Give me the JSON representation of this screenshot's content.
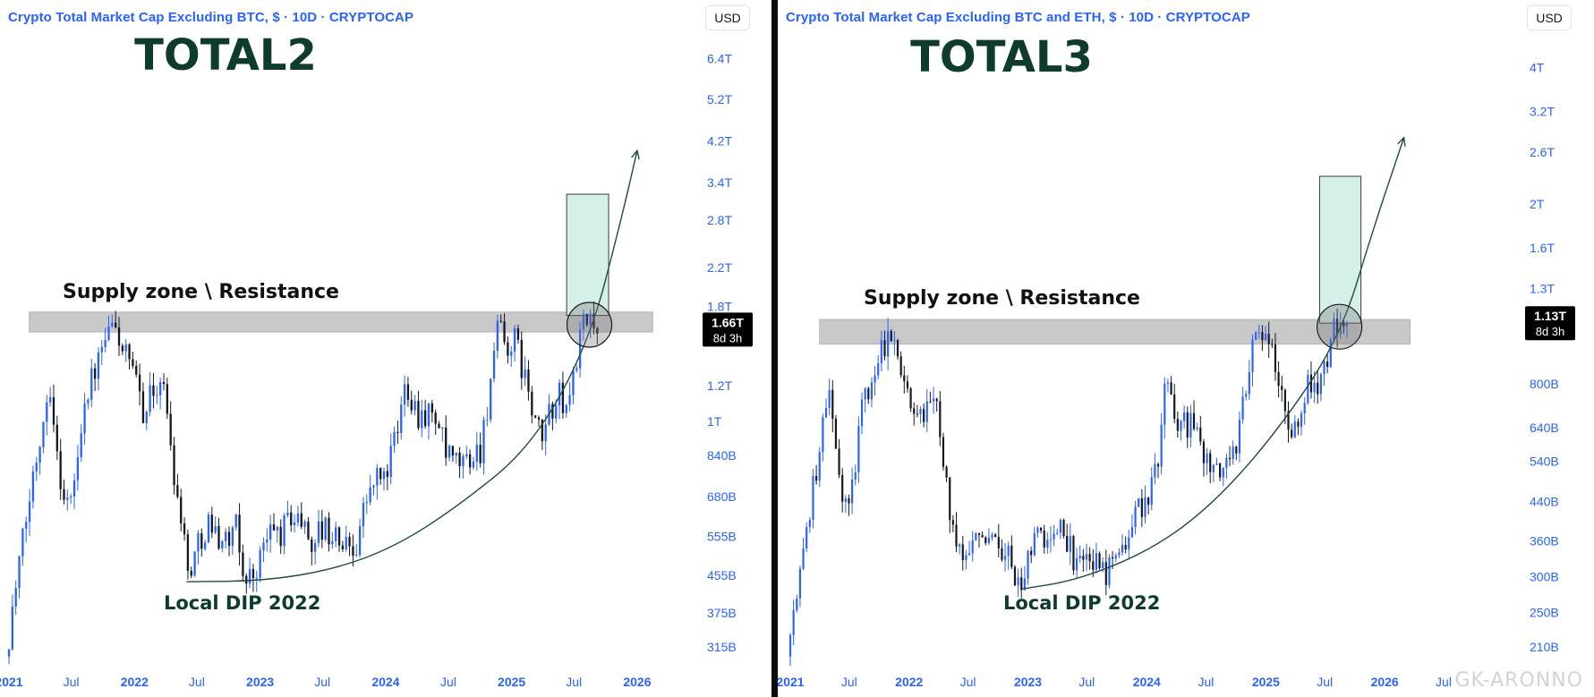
{
  "colors": {
    "accent": "#2962ff",
    "zone": "#c8c8c8",
    "target": "#d5efe9",
    "bull": "#2962ff",
    "bear": "#131722",
    "big_label": "#0d3b2e",
    "price_badge_bg": "#000000"
  },
  "watermark": "GK-ARONNO",
  "chart_data": [
    {
      "type": "candlestick",
      "title": "Crypto Total Market Cap Excluding BTC, $ · 10D · CRYPTOCAP",
      "big_label": "TOTAL2",
      "currency_button": "USD",
      "y_scale": "log",
      "ylim": [
        285,
        7200
      ],
      "y_unit": "B",
      "y_ticks": [
        {
          "label": "6.4T",
          "value": 6400
        },
        {
          "label": "5.2T",
          "value": 5200
        },
        {
          "label": "4.2T",
          "value": 4200
        },
        {
          "label": "3.4T",
          "value": 3400
        },
        {
          "label": "2.8T",
          "value": 2800
        },
        {
          "label": "2.2T",
          "value": 2200
        },
        {
          "label": "1.8T",
          "value": 1800
        },
        {
          "label": "1.2T",
          "value": 1200
        },
        {
          "label": "1T",
          "value": 1000
        },
        {
          "label": "840B",
          "value": 840
        },
        {
          "label": "680B",
          "value": 680
        },
        {
          "label": "555B",
          "value": 555
        },
        {
          "label": "455B",
          "value": 455
        },
        {
          "label": "375B",
          "value": 375
        },
        {
          "label": "315B",
          "value": 315
        }
      ],
      "x_range": [
        "2021-01-01",
        "2026-03-15"
      ],
      "x_ticks": [
        {
          "label": "2021",
          "date": "2021-01-01"
        },
        {
          "label": "Jul",
          "date": "2021-07-01"
        },
        {
          "label": "2022",
          "date": "2022-01-01"
        },
        {
          "label": "Jul",
          "date": "2022-07-01"
        },
        {
          "label": "2023",
          "date": "2023-01-01"
        },
        {
          "label": "Jul",
          "date": "2023-07-01"
        },
        {
          "label": "2024",
          "date": "2024-01-01"
        },
        {
          "label": "Jul",
          "date": "2024-07-01"
        },
        {
          "label": "2025",
          "date": "2025-01-01"
        },
        {
          "label": "Jul",
          "date": "2025-07-01"
        },
        {
          "label": "2026",
          "date": "2026-01-01"
        }
      ],
      "price_badge": {
        "value": 1660,
        "label": "1.66T",
        "countdown": "8d 3h"
      },
      "zone": {
        "label": "Supply zone \\ Resistance",
        "start": "2021-03-01",
        "end": "2026-02-15",
        "low": 1580,
        "high": 1750
      },
      "target_box": {
        "start": "2025-06-10",
        "end": "2025-10-10",
        "low": 1720,
        "high": 3200
      },
      "circle": {
        "date": "2025-08-15",
        "value": 1640
      },
      "curve": [
        {
          "date": "2022-06-01",
          "value": 440
        },
        {
          "date": "2023-01-10",
          "value": 442
        },
        {
          "date": "2023-08-01",
          "value": 468
        },
        {
          "date": "2024-02-01",
          "value": 528
        },
        {
          "date": "2024-08-01",
          "value": 650
        },
        {
          "date": "2025-03-01",
          "value": 880
        },
        {
          "date": "2025-08-15",
          "value": 1500
        },
        {
          "date": "2025-11-15",
          "value": 2800
        },
        {
          "date": "2026-01-01",
          "value": 4000
        }
      ],
      "dip_label": "Local DIP 2022",
      "series": [
        {
          "date": "2021-01-01",
          "value": 300
        },
        {
          "date": "2021-02-10",
          "value": 480
        },
        {
          "date": "2021-03-25",
          "value": 780
        },
        {
          "date": "2021-05-10",
          "value": 1250
        },
        {
          "date": "2021-06-01",
          "value": 820
        },
        {
          "date": "2021-06-25",
          "value": 640
        },
        {
          "date": "2021-07-20",
          "value": 720
        },
        {
          "date": "2021-08-15",
          "value": 1100
        },
        {
          "date": "2021-09-10",
          "value": 1250
        },
        {
          "date": "2021-10-05",
          "value": 1400
        },
        {
          "date": "2021-11-10",
          "value": 1650
        },
        {
          "date": "2021-12-01",
          "value": 1500
        },
        {
          "date": "2021-12-20",
          "value": 1380
        },
        {
          "date": "2022-01-15",
          "value": 1200
        },
        {
          "date": "2022-02-10",
          "value": 1050
        },
        {
          "date": "2022-03-01",
          "value": 1150
        },
        {
          "date": "2022-03-30",
          "value": 1250
        },
        {
          "date": "2022-04-20",
          "value": 1000
        },
        {
          "date": "2022-05-10",
          "value": 720
        },
        {
          "date": "2022-05-30",
          "value": 610
        },
        {
          "date": "2022-06-15",
          "value": 460
        },
        {
          "date": "2022-07-10",
          "value": 520
        },
        {
          "date": "2022-08-10",
          "value": 600
        },
        {
          "date": "2022-09-10",
          "value": 560
        },
        {
          "date": "2022-10-10",
          "value": 540
        },
        {
          "date": "2022-11-05",
          "value": 580
        },
        {
          "date": "2022-11-20",
          "value": 460
        },
        {
          "date": "2022-12-20",
          "value": 450
        },
        {
          "date": "2023-01-20",
          "value": 520
        },
        {
          "date": "2023-02-15",
          "value": 580
        },
        {
          "date": "2023-03-10",
          "value": 560
        },
        {
          "date": "2023-04-10",
          "value": 620
        },
        {
          "date": "2023-05-10",
          "value": 600
        },
        {
          "date": "2023-06-10",
          "value": 540
        },
        {
          "date": "2023-07-05",
          "value": 580
        },
        {
          "date": "2023-08-10",
          "value": 560
        },
        {
          "date": "2023-09-10",
          "value": 530
        },
        {
          "date": "2023-10-15",
          "value": 530
        },
        {
          "date": "2023-11-10",
          "value": 650
        },
        {
          "date": "2023-12-10",
          "value": 740
        },
        {
          "date": "2024-01-10",
          "value": 760
        },
        {
          "date": "2024-02-15",
          "value": 950
        },
        {
          "date": "2024-03-10",
          "value": 1250
        },
        {
          "date": "2024-04-10",
          "value": 1050
        },
        {
          "date": "2024-05-10",
          "value": 1050
        },
        {
          "date": "2024-06-10",
          "value": 1000
        },
        {
          "date": "2024-07-05",
          "value": 830
        },
        {
          "date": "2024-08-05",
          "value": 800
        },
        {
          "date": "2024-09-10",
          "value": 820
        },
        {
          "date": "2024-10-15",
          "value": 880
        },
        {
          "date": "2024-11-15",
          "value": 1300
        },
        {
          "date": "2024-12-05",
          "value": 1620
        },
        {
          "date": "2024-12-25",
          "value": 1450
        },
        {
          "date": "2025-01-20",
          "value": 1500
        },
        {
          "date": "2025-02-15",
          "value": 1300
        },
        {
          "date": "2025-03-10",
          "value": 1050
        },
        {
          "date": "2025-04-08",
          "value": 900
        },
        {
          "date": "2025-05-01",
          "value": 1050
        },
        {
          "date": "2025-05-25",
          "value": 1150
        },
        {
          "date": "2025-06-20",
          "value": 1050
        },
        {
          "date": "2025-07-15",
          "value": 1350
        },
        {
          "date": "2025-08-05",
          "value": 1600
        },
        {
          "date": "2025-08-25",
          "value": 1680
        },
        {
          "date": "2025-09-10",
          "value": 1660
        }
      ]
    },
    {
      "type": "candlestick",
      "title": "Crypto Total Market Cap Excluding BTC and ETH, $ · 10D · CRYPTOCAP",
      "big_label": "TOTAL3",
      "currency_button": "USD",
      "y_scale": "log",
      "ylim": [
        190,
        4700
      ],
      "y_unit": "B",
      "y_ticks": [
        {
          "label": "4T",
          "value": 4000
        },
        {
          "label": "3.2T",
          "value": 3200
        },
        {
          "label": "2.6T",
          "value": 2600
        },
        {
          "label": "2T",
          "value": 2000
        },
        {
          "label": "1.6T",
          "value": 1600
        },
        {
          "label": "1.3T",
          "value": 1300
        },
        {
          "label": "800B",
          "value": 800
        },
        {
          "label": "640B",
          "value": 640
        },
        {
          "label": "540B",
          "value": 540
        },
        {
          "label": "440B",
          "value": 440
        },
        {
          "label": "360B",
          "value": 360
        },
        {
          "label": "300B",
          "value": 300
        },
        {
          "label": "250B",
          "value": 250
        },
        {
          "label": "210B",
          "value": 210
        }
      ],
      "x_range": [
        "2021-01-01",
        "2026-06-20"
      ],
      "x_ticks": [
        {
          "label": "2021",
          "date": "2021-01-01"
        },
        {
          "label": "Jul",
          "date": "2021-07-01"
        },
        {
          "label": "2022",
          "date": "2022-01-01"
        },
        {
          "label": "Jul",
          "date": "2022-07-01"
        },
        {
          "label": "2023",
          "date": "2023-01-01"
        },
        {
          "label": "Jul",
          "date": "2023-07-01"
        },
        {
          "label": "2024",
          "date": "2024-01-01"
        },
        {
          "label": "Jul",
          "date": "2024-07-01"
        },
        {
          "label": "2025",
          "date": "2025-01-01"
        },
        {
          "label": "Jul",
          "date": "2025-07-01"
        },
        {
          "label": "2026",
          "date": "2026-01-01"
        },
        {
          "label": "Jul",
          "date": "2026-07-01"
        }
      ],
      "price_badge": {
        "value": 1130,
        "label": "1.13T",
        "countdown": "8d 3h"
      },
      "zone": {
        "label": "Supply zone \\ Resistance",
        "start": "2021-04-01",
        "end": "2026-03-20",
        "low": 980,
        "high": 1110
      },
      "target_box": {
        "start": "2025-06-15",
        "end": "2025-10-20",
        "low": 1090,
        "high": 2300
      },
      "circle": {
        "date": "2025-08-15",
        "value": 1070
      },
      "curve": [
        {
          "date": "2022-12-15",
          "value": 282
        },
        {
          "date": "2023-06-01",
          "value": 295
        },
        {
          "date": "2024-01-01",
          "value": 340
        },
        {
          "date": "2024-07-01",
          "value": 420
        },
        {
          "date": "2025-01-15",
          "value": 600
        },
        {
          "date": "2025-08-15",
          "value": 1000
        },
        {
          "date": "2025-12-01",
          "value": 1800
        },
        {
          "date": "2026-03-01",
          "value": 2800
        }
      ],
      "dip_label": "Local DIP 2022",
      "series": [
        {
          "date": "2021-01-01",
          "value": 200
        },
        {
          "date": "2021-02-10",
          "value": 300
        },
        {
          "date": "2021-03-25",
          "value": 480
        },
        {
          "date": "2021-05-10",
          "value": 800
        },
        {
          "date": "2021-06-01",
          "value": 540
        },
        {
          "date": "2021-06-25",
          "value": 420
        },
        {
          "date": "2021-07-20",
          "value": 470
        },
        {
          "date": "2021-08-15",
          "value": 700
        },
        {
          "date": "2021-09-10",
          "value": 780
        },
        {
          "date": "2021-10-05",
          "value": 880
        },
        {
          "date": "2021-11-10",
          "value": 1050
        },
        {
          "date": "2021-12-01",
          "value": 960
        },
        {
          "date": "2021-12-20",
          "value": 880
        },
        {
          "date": "2022-01-15",
          "value": 760
        },
        {
          "date": "2022-02-10",
          "value": 650
        },
        {
          "date": "2022-03-01",
          "value": 700
        },
        {
          "date": "2022-03-30",
          "value": 760
        },
        {
          "date": "2022-04-20",
          "value": 620
        },
        {
          "date": "2022-05-10",
          "value": 450
        },
        {
          "date": "2022-05-30",
          "value": 400
        },
        {
          "date": "2022-06-15",
          "value": 330
        },
        {
          "date": "2022-07-10",
          "value": 360
        },
        {
          "date": "2022-08-10",
          "value": 400
        },
        {
          "date": "2022-09-10",
          "value": 360
        },
        {
          "date": "2022-10-10",
          "value": 350
        },
        {
          "date": "2022-11-05",
          "value": 360
        },
        {
          "date": "2022-11-20",
          "value": 310
        },
        {
          "date": "2022-12-20",
          "value": 290
        },
        {
          "date": "2023-01-20",
          "value": 340
        },
        {
          "date": "2023-02-15",
          "value": 380
        },
        {
          "date": "2023-03-10",
          "value": 360
        },
        {
          "date": "2023-04-10",
          "value": 390
        },
        {
          "date": "2023-05-10",
          "value": 370
        },
        {
          "date": "2023-06-10",
          "value": 310
        },
        {
          "date": "2023-07-05",
          "value": 340
        },
        {
          "date": "2023-08-10",
          "value": 320
        },
        {
          "date": "2023-09-10",
          "value": 310
        },
        {
          "date": "2023-10-15",
          "value": 310
        },
        {
          "date": "2023-11-10",
          "value": 370
        },
        {
          "date": "2023-12-10",
          "value": 430
        },
        {
          "date": "2024-01-10",
          "value": 440
        },
        {
          "date": "2024-02-15",
          "value": 540
        },
        {
          "date": "2024-03-10",
          "value": 800
        },
        {
          "date": "2024-04-10",
          "value": 660
        },
        {
          "date": "2024-05-10",
          "value": 660
        },
        {
          "date": "2024-06-10",
          "value": 620
        },
        {
          "date": "2024-07-05",
          "value": 540
        },
        {
          "date": "2024-08-05",
          "value": 500
        },
        {
          "date": "2024-09-10",
          "value": 530
        },
        {
          "date": "2024-10-15",
          "value": 570
        },
        {
          "date": "2024-11-15",
          "value": 850
        },
        {
          "date": "2024-12-05",
          "value": 1080
        },
        {
          "date": "2024-12-25",
          "value": 940
        },
        {
          "date": "2025-01-20",
          "value": 980
        },
        {
          "date": "2025-02-15",
          "value": 820
        },
        {
          "date": "2025-03-10",
          "value": 700
        },
        {
          "date": "2025-04-08",
          "value": 620
        },
        {
          "date": "2025-05-01",
          "value": 720
        },
        {
          "date": "2025-05-25",
          "value": 820
        },
        {
          "date": "2025-06-20",
          "value": 760
        },
        {
          "date": "2025-07-15",
          "value": 900
        },
        {
          "date": "2025-08-05",
          "value": 1050
        },
        {
          "date": "2025-08-25",
          "value": 1100
        },
        {
          "date": "2025-09-10",
          "value": 1130
        }
      ]
    }
  ]
}
